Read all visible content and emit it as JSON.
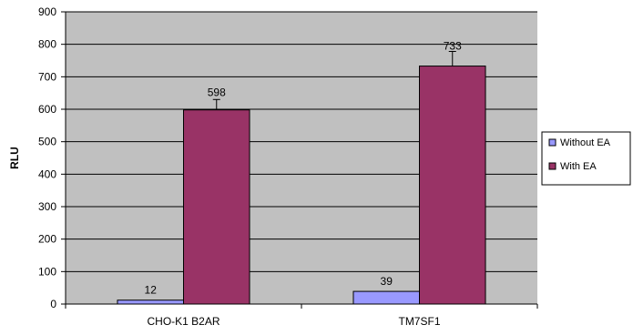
{
  "chart_data": {
    "type": "bar",
    "title": "",
    "xlabel": "",
    "ylabel": "RLU",
    "ylim": [
      0,
      900
    ],
    "yticks": [
      0,
      100,
      200,
      300,
      400,
      500,
      600,
      700,
      800,
      900
    ],
    "grid": true,
    "legend_position": "right",
    "categories": [
      "CHO-K1 B2AR",
      "TM7SF1"
    ],
    "series": [
      {
        "name": "Without EA",
        "color": "#9999ff",
        "values": [
          12,
          39
        ],
        "errors": [
          0,
          0
        ],
        "labels": [
          "12",
          "39"
        ]
      },
      {
        "name": "With EA",
        "color": "#993366",
        "values": [
          598,
          733
        ],
        "errors": [
          32,
          45
        ],
        "labels": [
          "598",
          "733"
        ]
      }
    ],
    "plot_background": "#c0c0c0"
  }
}
